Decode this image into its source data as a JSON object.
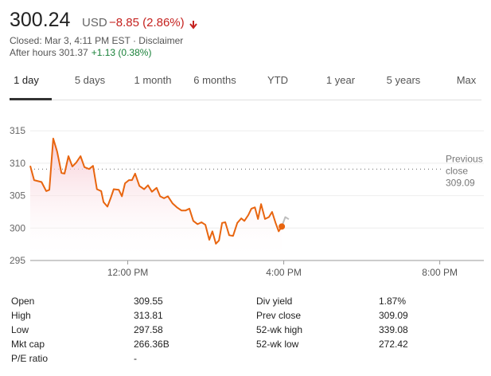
{
  "header": {
    "price": "300.24",
    "currency": "USD",
    "change": "−8.85 (2.86%)",
    "status": "Closed: Mar 3, 4:11 PM EST · Disclaimer",
    "after_hours": "After hours 301.37",
    "after_hours_change": "+1.13 (0.38%)"
  },
  "tabs": {
    "items": [
      "1 day",
      "5 days",
      "1 month",
      "6 months",
      "YTD",
      "1 year",
      "5 years",
      "Max"
    ],
    "selected": 0
  },
  "chart_data": {
    "type": "line",
    "xlim": [
      9.5,
      21.13
    ],
    "ylim": [
      295,
      316.5
    ],
    "xticks": [
      {
        "value": 12,
        "label": "12:00 PM"
      },
      {
        "value": 16,
        "label": "4:00 PM"
      },
      {
        "value": 20,
        "label": "8:00 PM"
      }
    ],
    "yticks": [
      295,
      300,
      305,
      310,
      315
    ],
    "grid": true,
    "reference_line": {
      "value": 309.09,
      "label_lines": [
        "Previous",
        "close"
      ],
      "color": "#777777"
    },
    "series": [
      {
        "color": "#e8650f",
        "fill": "#f8d0d8",
        "x": [
          9.5,
          9.6,
          9.79,
          9.91,
          9.99,
          10.09,
          10.19,
          10.3,
          10.38,
          10.48,
          10.58,
          10.68,
          10.79,
          10.89,
          11.01,
          11.11,
          11.21,
          11.32,
          11.38,
          11.48,
          11.56,
          11.64,
          11.77,
          11.85,
          11.93,
          12.03,
          12.11,
          12.19,
          12.3,
          12.42,
          12.52,
          12.62,
          12.74,
          12.83,
          12.93,
          13.03,
          13.15,
          13.26,
          13.38,
          13.48,
          13.58,
          13.68,
          13.79,
          13.89,
          13.99,
          14.09,
          14.17,
          14.26,
          14.34,
          14.42,
          14.5,
          14.6,
          14.7,
          14.81,
          14.91,
          14.99,
          15.09,
          15.17,
          15.26,
          15.34,
          15.42,
          15.52,
          15.62,
          15.7,
          15.79,
          15.87,
          15.95
        ],
        "values": [
          309.6,
          307.4,
          307.1,
          305.7,
          305.9,
          313.81,
          311.8,
          308.5,
          308.4,
          311.1,
          309.5,
          310.1,
          311.1,
          309.4,
          309.1,
          309.6,
          306.0,
          305.7,
          304.0,
          303.3,
          304.6,
          306.0,
          305.9,
          304.9,
          306.9,
          307.4,
          307.4,
          308.4,
          306.5,
          306.0,
          306.6,
          305.6,
          306.2,
          304.9,
          304.6,
          304.9,
          303.8,
          303.2,
          302.7,
          302.7,
          303.0,
          301.1,
          300.6,
          300.9,
          300.5,
          298.2,
          299.5,
          297.58,
          298.1,
          300.8,
          300.9,
          298.9,
          298.8,
          300.8,
          301.5,
          301.1,
          302.0,
          303.0,
          303.2,
          301.4,
          303.7,
          301.4,
          301.7,
          302.5,
          300.8,
          299.5,
          300.24
        ]
      },
      {
        "color": "#bdbdbd",
        "x": [
          15.95,
          16.04,
          16.13
        ],
        "values": [
          300.24,
          301.7,
          301.37
        ]
      }
    ]
  },
  "stats": {
    "rows": [
      [
        "Open",
        "309.55",
        "Div yield",
        "1.87%"
      ],
      [
        "High",
        "313.81",
        "Prev close",
        "309.09"
      ],
      [
        "Low",
        "297.58",
        "52-wk high",
        "339.08"
      ],
      [
        "Mkt cap",
        "266.36B",
        "52-wk low",
        "272.42"
      ],
      [
        "P/E ratio",
        "-"
      ]
    ]
  }
}
